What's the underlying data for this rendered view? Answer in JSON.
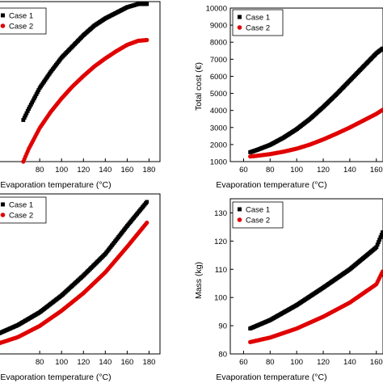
{
  "chart_data": [
    {
      "type": "scatter",
      "panel": "top-left",
      "title": "",
      "xlabel": "Evaporation temperature (°C)",
      "ylabel": "",
      "xlim": [
        40,
        190
      ],
      "ylim": [
        0,
        100
      ],
      "xticks": [
        80,
        100,
        120,
        140,
        160,
        180
      ],
      "yticks": [],
      "legend": "top-left",
      "series": [
        {
          "name": "Case 1",
          "marker": "square",
          "color": "#000000",
          "x": [
            65,
            70,
            80,
            90,
            100,
            110,
            120,
            130,
            140,
            150,
            160,
            170,
            178
          ],
          "y": [
            26,
            33,
            46,
            56,
            65,
            72,
            79,
            85,
            89.5,
            93,
            96.5,
            98.5,
            98.5
          ]
        },
        {
          "name": "Case 2",
          "marker": "circle",
          "color": "#e00000",
          "x": [
            65,
            70,
            80,
            90,
            100,
            110,
            120,
            130,
            140,
            150,
            160,
            170,
            178
          ],
          "y": [
            0,
            8,
            21,
            31,
            39.5,
            47,
            53.5,
            59.5,
            64.5,
            69,
            73,
            75.5,
            76
          ]
        }
      ]
    },
    {
      "type": "scatter",
      "panel": "top-right",
      "title": "",
      "xlabel": "Evaporation temperature (°C)",
      "ylabel": "Total cost (€)",
      "xlim": [
        50,
        165
      ],
      "ylim": [
        1000,
        10000
      ],
      "xticks": [
        60,
        80,
        100,
        120,
        140,
        160
      ],
      "yticks": [
        1000,
        2000,
        3000,
        4000,
        5000,
        6000,
        7000,
        8000,
        9000,
        10000
      ],
      "legend": "top-left",
      "series": [
        {
          "name": "Case 1",
          "marker": "square",
          "color": "#000000",
          "x": [
            65,
            70,
            80,
            90,
            100,
            110,
            120,
            130,
            140,
            150,
            160,
            165
          ],
          "y": [
            1550,
            1680,
            1980,
            2400,
            2900,
            3500,
            4200,
            4950,
            5750,
            6550,
            7350,
            7650
          ]
        },
        {
          "name": "Case 2",
          "marker": "circle",
          "color": "#e00000",
          "x": [
            65,
            70,
            80,
            90,
            100,
            110,
            120,
            130,
            140,
            150,
            160,
            165
          ],
          "y": [
            1300,
            1340,
            1440,
            1580,
            1760,
            2000,
            2300,
            2640,
            3000,
            3400,
            3800,
            4050
          ]
        }
      ]
    },
    {
      "type": "scatter",
      "panel": "bottom-left",
      "title": "",
      "xlabel": "Evaporation temperature (°C)",
      "ylabel": "",
      "xlim": [
        40,
        190
      ],
      "ylim": [
        0,
        100
      ],
      "xticks": [
        80,
        100,
        120,
        140,
        160,
        180
      ],
      "yticks": [],
      "legend": "top-left",
      "series": [
        {
          "name": "Case 1",
          "marker": "square",
          "color": "#000000",
          "x": [
            40,
            60,
            80,
            100,
            120,
            140,
            160,
            178
          ],
          "y": [
            12,
            18,
            26,
            36.5,
            49,
            62.5,
            80,
            95
          ]
        },
        {
          "name": "Case 2",
          "marker": "circle",
          "color": "#e00000",
          "x": [
            40,
            60,
            80,
            100,
            120,
            140,
            160,
            178
          ],
          "y": [
            6,
            10.5,
            17.5,
            27,
            38,
            51,
            67,
            82
          ]
        }
      ]
    },
    {
      "type": "scatter",
      "panel": "bottom-right",
      "title": "",
      "xlabel": "Evaporation temperature (°C)",
      "ylabel": "Mass  (kg)",
      "xlim": [
        50,
        165
      ],
      "ylim": [
        80,
        135
      ],
      "xticks": [
        60,
        80,
        100,
        120,
        140,
        160
      ],
      "yticks": [
        80,
        90,
        100,
        110,
        120,
        130
      ],
      "legend": "top-left",
      "series": [
        {
          "name": "Case 1",
          "marker": "square",
          "color": "#000000",
          "x": [
            65,
            80,
            100,
            120,
            140,
            160,
            165
          ],
          "y": [
            89,
            92,
            97.3,
            103.5,
            110,
            117.8,
            123.5
          ]
        },
        {
          "name": "Case 2",
          "marker": "circle",
          "color": "#e00000",
          "x": [
            65,
            80,
            100,
            120,
            140,
            160,
            165
          ],
          "y": [
            84.2,
            85.8,
            89,
            93.2,
            98.2,
            104.7,
            109.5
          ]
        }
      ]
    }
  ]
}
